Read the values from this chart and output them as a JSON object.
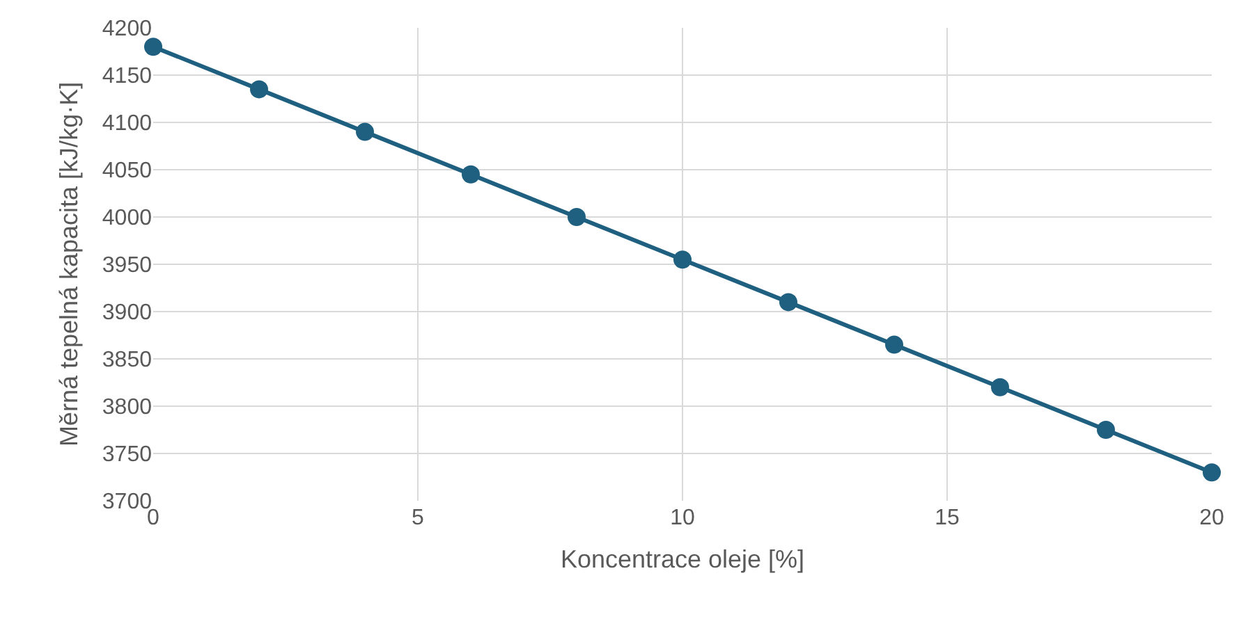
{
  "chart_data": {
    "type": "line",
    "xlabel": "Koncentrace oleje [%]",
    "ylabel": "Měrná tepelná kapacita [kJ/kg·K]",
    "x": [
      0,
      2,
      4,
      6,
      8,
      10,
      12,
      14,
      16,
      18,
      20
    ],
    "series": [
      {
        "color": "#1f5f7f",
        "values": [
          4180,
          4135,
          4090,
          4045,
          4000,
          3955,
          3910,
          3865,
          3820,
          3775,
          3730
        ]
      }
    ],
    "xlim": [
      0,
      20
    ],
    "xticks": [
      0,
      5,
      10,
      15,
      20
    ],
    "ylim": [
      3700,
      4200
    ],
    "yticks": [
      3700,
      3750,
      3800,
      3850,
      3900,
      3950,
      4000,
      4050,
      4100,
      4150,
      4200
    ],
    "grid": true,
    "marker": "circle",
    "line_style": "solid"
  }
}
